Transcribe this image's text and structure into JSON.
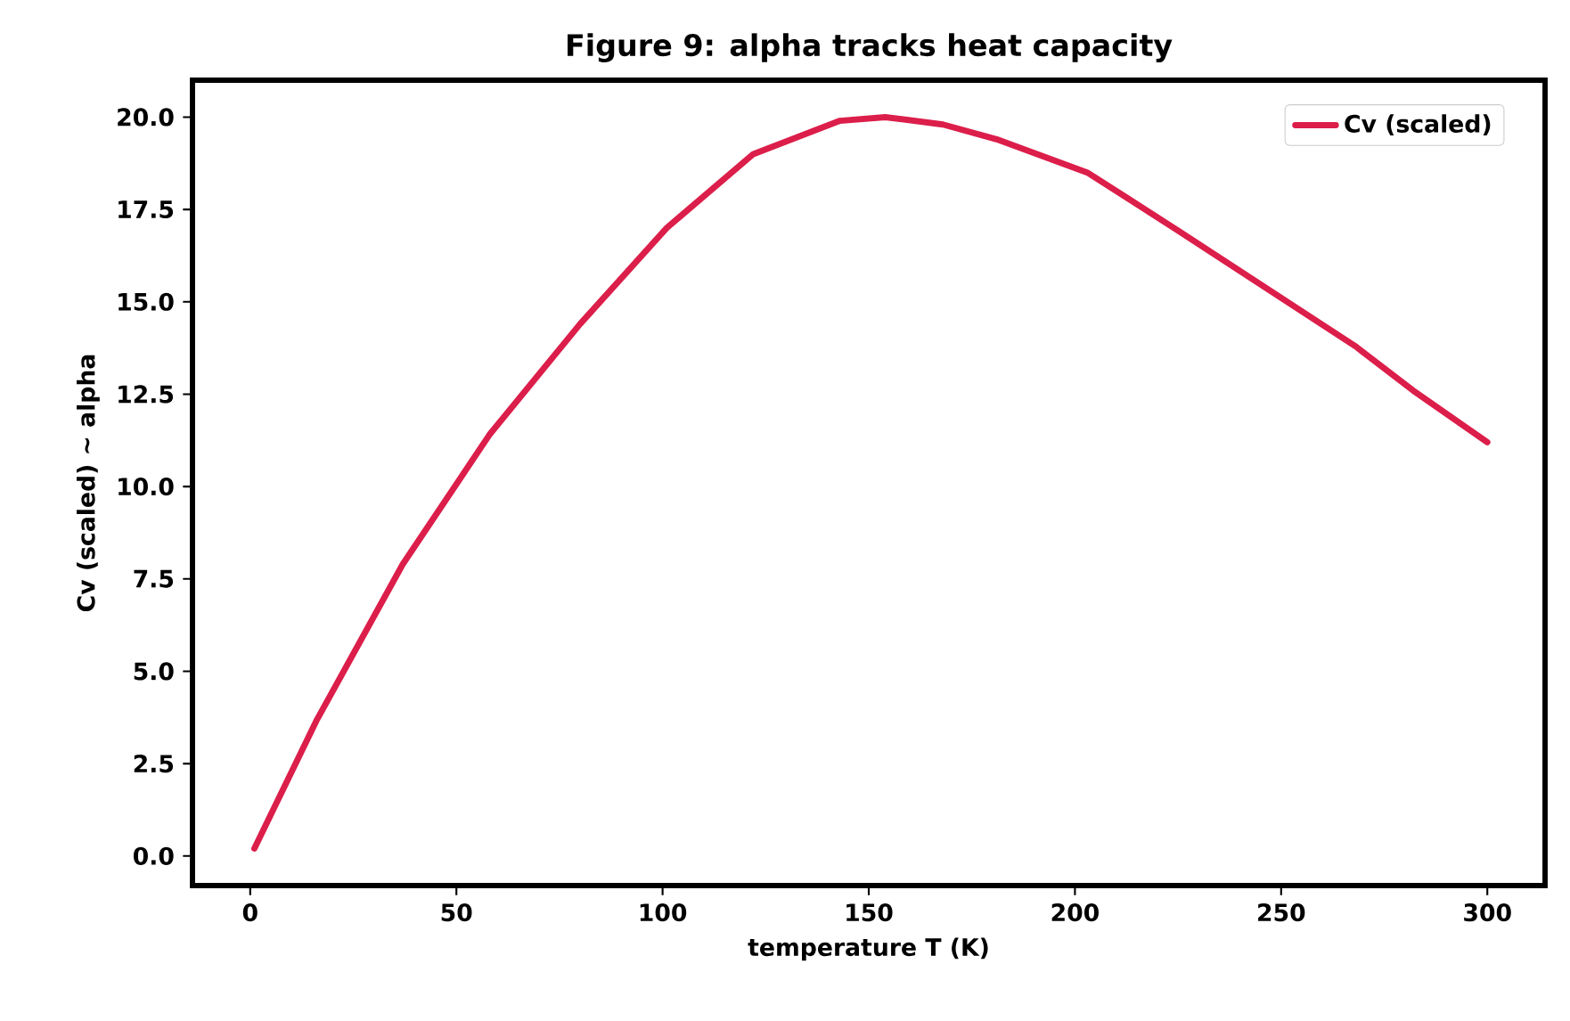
{
  "chart_data": {
    "type": "line",
    "title": "Figure 9: alpha tracks heat capacity",
    "xlabel": "temperature T (K)",
    "ylabel": "Cv (scaled)  ~ alpha",
    "x": [
      1,
      16,
      37,
      58,
      80,
      101,
      122,
      143,
      154,
      168,
      181,
      203,
      224,
      246,
      268,
      282,
      300
    ],
    "series": [
      {
        "name": "Cv (scaled)",
        "color": "#dc1e4a",
        "values": [
          0.2,
          3.65,
          7.9,
          11.4,
          14.4,
          17.0,
          19.0,
          19.9,
          20.0,
          19.8,
          19.4,
          18.5,
          17.0,
          15.4,
          13.8,
          12.6,
          11.2
        ]
      }
    ],
    "xlim": [
      -14,
      314
    ],
    "ylim": [
      -0.8,
      21
    ],
    "xticks": [
      0,
      50,
      100,
      150,
      200,
      250,
      300
    ],
    "yticks": [
      {
        "value": 0,
        "label": "0.0"
      },
      {
        "value": 2.5,
        "label": "2.5"
      },
      {
        "value": 5,
        "label": "5.0"
      },
      {
        "value": 7.5,
        "label": "7.5"
      },
      {
        "value": 10,
        "label": "10.0"
      },
      {
        "value": 12.5,
        "label": "12.5"
      },
      {
        "value": 15,
        "label": "15.0"
      },
      {
        "value": 17.5,
        "label": "17.5"
      },
      {
        "value": 20,
        "label": "20.0"
      }
    ],
    "grid": false,
    "legend": "top right",
    "marker": "none",
    "line_style": "solid"
  }
}
